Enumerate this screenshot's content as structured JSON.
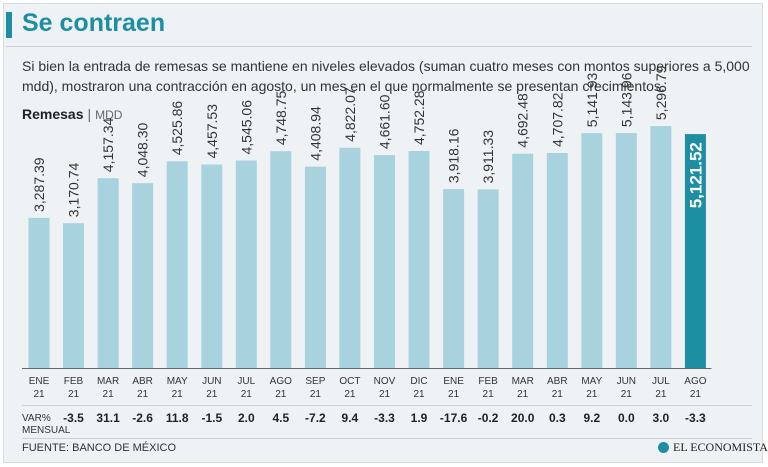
{
  "title": "Se contraen",
  "intro": "Si bien la entrada de remesas se mantiene en niveles elevados (suman cuatro meses con montos superiores a 5,000 mdd), mostraron una contracción en agosto, un mes en el que normalmente se presentan crecimientos.",
  "series_name": "Remesas",
  "series_sep": "|",
  "series_unit": "MDD",
  "var_label_1": "VAR%",
  "var_label_2": "MENSUAL",
  "source": "FUENTE: BANCO DE MÉXICO",
  "brand": "EL ECONOMISTA",
  "colors": {
    "bar": "#a9d2df",
    "highlight": "#1e8fa3",
    "title": "#1e8fa3"
  },
  "chart_data": {
    "type": "bar",
    "title": "Remesas",
    "ylabel": "MDD",
    "xlabel": "",
    "ylim": [
      0,
      5300
    ],
    "categories": [
      {
        "month": "ENE",
        "year": "21"
      },
      {
        "month": "FEB",
        "year": "21"
      },
      {
        "month": "MAR",
        "year": "21"
      },
      {
        "month": "ABR",
        "year": "21"
      },
      {
        "month": "MAY",
        "year": "21"
      },
      {
        "month": "JUN",
        "year": "21"
      },
      {
        "month": "JUL",
        "year": "21"
      },
      {
        "month": "AGO",
        "year": "21"
      },
      {
        "month": "SEP",
        "year": "21"
      },
      {
        "month": "OCT",
        "year": "21"
      },
      {
        "month": "NOV",
        "year": "21"
      },
      {
        "month": "DIC",
        "year": "21"
      },
      {
        "month": "ENE",
        "year": "21"
      },
      {
        "month": "FEB",
        "year": "21"
      },
      {
        "month": "MAR",
        "year": "21"
      },
      {
        "month": "ABR",
        "year": "21"
      },
      {
        "month": "MAY",
        "year": "21"
      },
      {
        "month": "JUN",
        "year": "21"
      },
      {
        "month": "JUL",
        "year": "21"
      },
      {
        "month": "AGO",
        "year": "21"
      }
    ],
    "values": [
      3287.39,
      3170.74,
      4157.34,
      4048.3,
      4525.86,
      4457.53,
      4545.06,
      4748.75,
      4408.94,
      4822.07,
      4661.6,
      4752.28,
      3918.16,
      3911.33,
      4692.48,
      4707.82,
      5141.93,
      5143.96,
      5296.79,
      5121.52
    ],
    "value_labels": [
      "3,287.39",
      "3,170.74",
      "4,157.34",
      "4,048.30",
      "4,525.86",
      "4,457.53",
      "4,545.06",
      "4,748.75",
      "4,408.94",
      "4,822.07",
      "4,661.60",
      "4,752.28",
      "3,918.16",
      "3,911.33",
      "4,692.48",
      "4,707.82",
      "5,141.93",
      "5,143.96",
      "5,296.79",
      "5,121.52"
    ],
    "monthly_change": [
      "-3.5",
      "31.1",
      "-2.6",
      "11.8",
      "-1.5",
      "2.0",
      "4.5",
      "-7.2",
      "9.4",
      "-3.3",
      "1.9",
      "-17.6",
      "-0.2",
      "20.0",
      "0.3",
      "9.2",
      "0.0",
      "3.0",
      "-3.3"
    ],
    "highlight_index": 19
  }
}
